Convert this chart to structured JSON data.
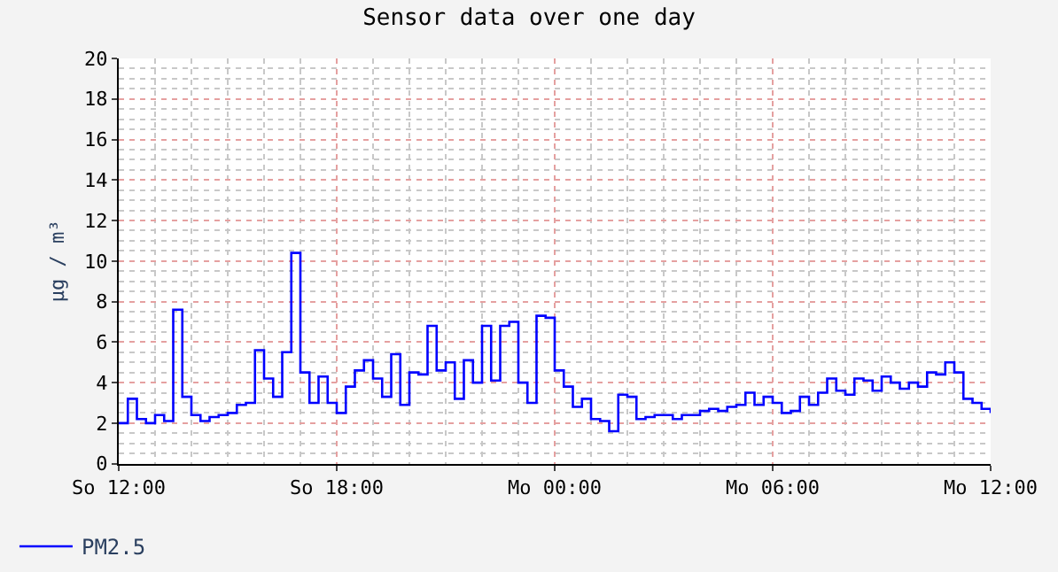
{
  "chart_data": {
    "type": "step",
    "title": "Sensor data over one day",
    "ylabel": "µg / m³",
    "categories": [
      "So 12:00",
      null,
      null,
      null,
      null,
      null,
      null,
      null,
      null,
      null,
      null,
      null,
      null,
      null,
      null,
      null,
      null,
      null,
      null,
      null,
      null,
      null,
      null,
      null,
      "So 18:00",
      null,
      null,
      null,
      null,
      null,
      null,
      null,
      null,
      null,
      null,
      null,
      null,
      null,
      null,
      null,
      null,
      null,
      null,
      null,
      null,
      null,
      null,
      null,
      "Mo 00:00",
      null,
      null,
      null,
      null,
      null,
      null,
      null,
      null,
      null,
      null,
      null,
      null,
      null,
      null,
      null,
      null,
      null,
      null,
      null,
      null,
      null,
      null,
      null,
      "Mo 06:00",
      null,
      null,
      null,
      null,
      null,
      null,
      null,
      null,
      null,
      null,
      null,
      null,
      null,
      null,
      null,
      null,
      null,
      null,
      null,
      null,
      null,
      null,
      null,
      "Mo 12:00"
    ],
    "series": [
      {
        "name": "PM2.5",
        "color": "#0000ff",
        "values": [
          2.0,
          3.2,
          2.2,
          2.0,
          2.4,
          2.1,
          7.6,
          3.3,
          2.4,
          2.1,
          2.3,
          2.4,
          2.5,
          2.9,
          3.0,
          5.6,
          4.2,
          3.3,
          5.5,
          10.4,
          4.5,
          3.0,
          4.3,
          3.0,
          2.5,
          3.8,
          4.6,
          5.1,
          4.2,
          3.3,
          5.4,
          2.9,
          4.5,
          4.4,
          6.8,
          4.6,
          5.0,
          3.2,
          5.1,
          4.0,
          6.8,
          4.1,
          6.8,
          7.0,
          4.0,
          3.0,
          7.3,
          7.2,
          4.6,
          3.8,
          2.8,
          3.2,
          2.2,
          2.1,
          1.6,
          3.4,
          3.3,
          2.2,
          2.3,
          2.4,
          2.4,
          2.2,
          2.4,
          2.4,
          2.6,
          2.7,
          2.6,
          2.8,
          2.9,
          3.5,
          2.9,
          3.3,
          3.0,
          2.5,
          2.6,
          3.3,
          2.9,
          3.5,
          4.2,
          3.6,
          3.4,
          4.2,
          4.1,
          3.6,
          4.3,
          4.0,
          3.7,
          4.0,
          3.8,
          4.5,
          4.4,
          5.0,
          4.5,
          3.2,
          3.0,
          2.7,
          2.5
        ]
      }
    ],
    "ylim": [
      0,
      20
    ],
    "yticks": [
      0,
      2,
      4,
      6,
      8,
      10,
      12,
      14,
      16,
      18,
      20
    ],
    "grid": true,
    "legend": "bottom left",
    "marker": "none",
    "line_style": "solid"
  }
}
